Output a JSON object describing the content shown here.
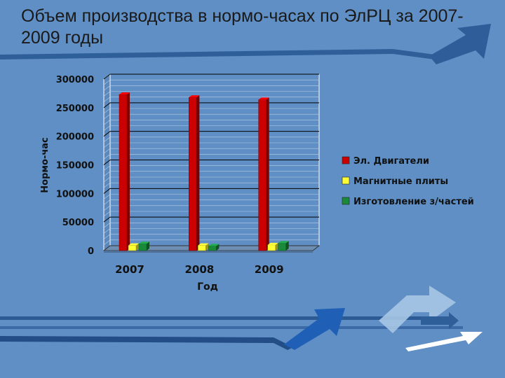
{
  "slide": {
    "title": "Объем производства в нормо-часах по ЭлРЦ за 2007-2009 годы"
  },
  "chart_data": {
    "type": "bar",
    "categories": [
      "2007",
      "2008",
      "2009"
    ],
    "series": [
      {
        "name": "Эл. Двигатели",
        "values": [
          273000,
          268000,
          264000
        ],
        "color": "#cc0000"
      },
      {
        "name": "Магнитные плиты",
        "values": [
          9000,
          9000,
          10000
        ],
        "color": "#ffff33"
      },
      {
        "name": "Изготовление з/частей",
        "values": [
          12000,
          8000,
          13000
        ],
        "color": "#1a8a3a"
      }
    ],
    "xlabel": "Год",
    "ylabel": "Нормо-час",
    "ylim": [
      0,
      300000
    ],
    "yticks": [
      "0",
      "50000",
      "100000",
      "150000",
      "200000",
      "250000",
      "300000"
    ],
    "grid": true,
    "legend_position": "right"
  }
}
